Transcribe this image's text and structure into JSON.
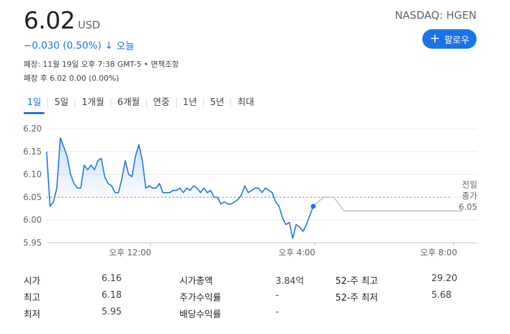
{
  "header": {
    "price": "6.02",
    "currency": "USD",
    "ticker": "NASDAQ: HGEN",
    "follow_label": "팔로우",
    "change": "−0.030 (0.50%)",
    "change_arrow": "↓",
    "change_period": "오늘",
    "meta_line1": "폐장: 11월 19일 오후 7:38 GMT-5 • 면책조항",
    "meta_line2": "폐장 후 6.02 0.00 (0.00%)"
  },
  "tabs": [
    {
      "label": "1일",
      "active": true
    },
    {
      "label": "5일"
    },
    {
      "label": "1개월"
    },
    {
      "label": "6개월"
    },
    {
      "label": "연중"
    },
    {
      "label": "1년"
    },
    {
      "label": "5년"
    },
    {
      "label": "최대"
    }
  ],
  "chart_data": {
    "type": "line",
    "y_ticks": [
      "6.20",
      "6.15",
      "6.10",
      "6.05",
      "6.00",
      "5.95"
    ],
    "x_ticks": [
      "오후 12:00",
      "오후 4:00",
      "오후 8:00"
    ],
    "ylim": [
      5.95,
      6.2
    ],
    "xlim": [
      "09:30",
      "20:00"
    ],
    "previous_close": 6.05,
    "previous_close_label_lines": [
      "전일",
      "종가",
      "6.05"
    ],
    "colors": {
      "line": "#1a73e8",
      "after_hours": "#bdc1c6",
      "fill": "#e8f0fe"
    },
    "series": [
      {
        "session": "regular",
        "x": [
          "09:30",
          "09:35",
          "09:40",
          "09:45",
          "09:50",
          "09:55",
          "10:00",
          "10:05",
          "10:10",
          "10:15",
          "10:20",
          "10:25",
          "10:30",
          "10:35",
          "10:40",
          "10:45",
          "10:50",
          "10:55",
          "11:00",
          "11:05",
          "11:10",
          "11:15",
          "11:20",
          "11:25",
          "11:30",
          "11:35",
          "11:40",
          "11:45",
          "11:50",
          "11:55",
          "12:00",
          "12:05",
          "12:10",
          "12:15",
          "12:20",
          "12:25",
          "12:30",
          "12:35",
          "12:40",
          "12:45",
          "12:50",
          "12:55",
          "13:00",
          "13:05",
          "13:10",
          "13:15",
          "13:20",
          "13:25",
          "13:30",
          "13:35",
          "13:40",
          "13:45",
          "13:50",
          "13:55",
          "14:00",
          "14:05",
          "14:10",
          "14:15",
          "14:20",
          "14:25",
          "14:30",
          "14:35",
          "14:40",
          "14:45",
          "14:50",
          "14:55",
          "15:00",
          "15:05",
          "15:10",
          "15:15",
          "15:20",
          "15:25",
          "15:30",
          "15:35",
          "15:40",
          "15:45",
          "15:50",
          "15:55",
          "16:00"
        ],
        "values": [
          6.15,
          6.03,
          6.04,
          6.07,
          6.18,
          6.16,
          6.14,
          6.1,
          6.08,
          6.07,
          6.07,
          6.12,
          6.11,
          6.12,
          6.11,
          6.13,
          6.135,
          6.095,
          6.08,
          6.075,
          6.06,
          6.06,
          6.09,
          6.13,
          6.1,
          6.095,
          6.14,
          6.165,
          6.13,
          6.07,
          6.075,
          6.07,
          6.07,
          6.08,
          6.06,
          6.06,
          6.06,
          6.065,
          6.065,
          6.07,
          6.06,
          6.07,
          6.065,
          6.075,
          6.07,
          6.06,
          6.07,
          6.06,
          6.065,
          6.05,
          6.05,
          6.035,
          6.04,
          6.035,
          6.035,
          6.04,
          6.045,
          6.055,
          6.075,
          6.06,
          6.065,
          6.07,
          6.07,
          6.06,
          6.07,
          6.065,
          6.06,
          6.04,
          6.03,
          6.005,
          5.99,
          5.995,
          5.96,
          5.99,
          5.985,
          5.975,
          5.99,
          6.01,
          6.03
        ]
      },
      {
        "session": "after_hours",
        "x": [
          "16:00",
          "16:15",
          "16:30",
          "16:45",
          "17:00",
          "18:00",
          "19:00",
          "19:38"
        ],
        "values": [
          6.03,
          6.05,
          6.05,
          6.02,
          6.02,
          6.02,
          6.02,
          6.02
        ]
      }
    ]
  },
  "stats": [
    {
      "label": "시가",
      "value": "6.16"
    },
    {
      "label": "최고",
      "value": "6.18"
    },
    {
      "label": "최저",
      "value": "5.95"
    },
    {
      "label": "시가총액",
      "value": "3.84억"
    },
    {
      "label": "주가수익률",
      "value": "-"
    },
    {
      "label": "배당수익률",
      "value": "-"
    },
    {
      "label": "52-주 최고",
      "value": "29.20"
    },
    {
      "label": "52-주 최저",
      "value": "5.68"
    }
  ]
}
